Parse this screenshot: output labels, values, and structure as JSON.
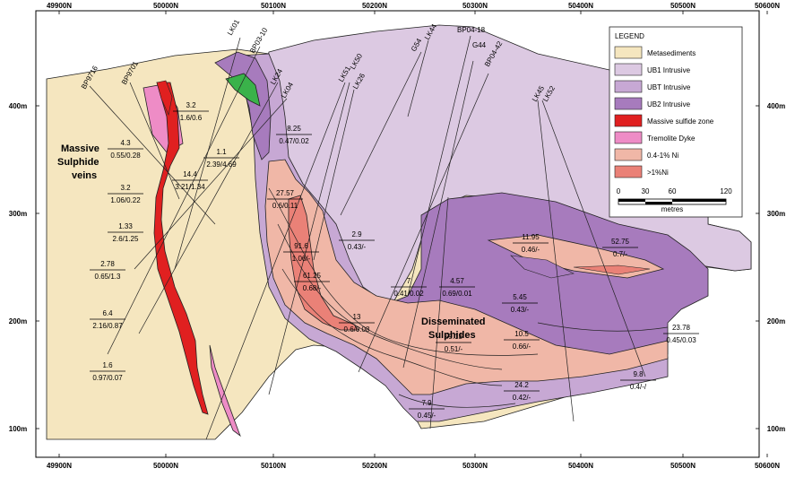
{
  "grid": {
    "x_ticks": [
      "49900N",
      "50000N",
      "50100N",
      "50200N",
      "50300N",
      "50400N",
      "50500N",
      "50600N"
    ],
    "y_ticks": [
      "400m",
      "300m",
      "200m",
      "100m"
    ]
  },
  "legend": {
    "title": "LEGEND",
    "items": [
      {
        "label": "Metasediments",
        "color": "#f5e6bf"
      },
      {
        "label": "UB1 Intrusive",
        "color": "#dcc9e2"
      },
      {
        "label": "UBT Intrusive",
        "color": "#c7a8d4"
      },
      {
        "label": "UB2 Intrusive",
        "color": "#a77bbd"
      },
      {
        "label": "Massive sulfide zone",
        "color": "#e02020"
      },
      {
        "label": "Tremolite Dyke",
        "color": "#ee8cc6"
      },
      {
        "label": "0.4-1% Ni",
        "color": "#f0b7a7"
      },
      {
        "label": ">1%Ni",
        "color": "#ea8177"
      }
    ],
    "scale_ticks": [
      "0",
      "30",
      "60",
      "120"
    ],
    "scale_unit": "metres"
  },
  "annotations": {
    "massive": "Massive",
    "sulphide": "Sulphide",
    "veins": "veins",
    "disseminated": "Disseminated",
    "sulphides": "Sulphides"
  },
  "drillholes": [
    "BP9716",
    "BP9701",
    "LK01",
    "BP03-10",
    "LK24",
    "LK04",
    "LK51",
    "LK50",
    "LK26",
    "G54",
    "LK44",
    "BP04-18",
    "G44",
    "BP04-42",
    "LK45",
    "LK52"
  ],
  "intercepts": [
    {
      "top": "3.2",
      "bottom": "1.6/0.6"
    },
    {
      "top": "4.3",
      "bottom": "0.55/0.28"
    },
    {
      "top": "1.1",
      "bottom": "2.39/4.69"
    },
    {
      "top": "14.4",
      "bottom": "3.21/1.34"
    },
    {
      "top": "3.2",
      "bottom": "1.06/0.22"
    },
    {
      "top": "1.33",
      "bottom": "2.6/1.25"
    },
    {
      "top": "2.78",
      "bottom": "0.65/1.3"
    },
    {
      "top": "6.4",
      "bottom": "2.16/0.87"
    },
    {
      "top": "1.6",
      "bottom": "0.97/0.07"
    },
    {
      "top": "8.25",
      "bottom": "0.47/0.02"
    },
    {
      "top": "27.57",
      "bottom": "0.6/0.11"
    },
    {
      "top": "91.6",
      "bottom": "1.06/-"
    },
    {
      "top": "61.25",
      "bottom": "0.68/-"
    },
    {
      "top": "2.9",
      "bottom": "0.43/-"
    },
    {
      "top": "13",
      "bottom": "0.6/0.08"
    },
    {
      "top": "7",
      "bottom": "0.41/0.02"
    },
    {
      "top": "4.57",
      "bottom": "0.69/0.01"
    },
    {
      "top": "59.13",
      "bottom": "0.51/-"
    },
    {
      "top": "7.9",
      "bottom": "0.45/-"
    },
    {
      "top": "11.95",
      "bottom": "0.46/-"
    },
    {
      "top": "52.75",
      "bottom": "0.7/-"
    },
    {
      "top": "5.45",
      "bottom": "0.43/-"
    },
    {
      "top": "10.5",
      "bottom": "0.66/-"
    },
    {
      "top": "23.78",
      "bottom": "0.45/0.03"
    },
    {
      "top": "24.2",
      "bottom": "0.42/-"
    },
    {
      "top": "9.8",
      "bottom": "0.4/-/"
    }
  ]
}
